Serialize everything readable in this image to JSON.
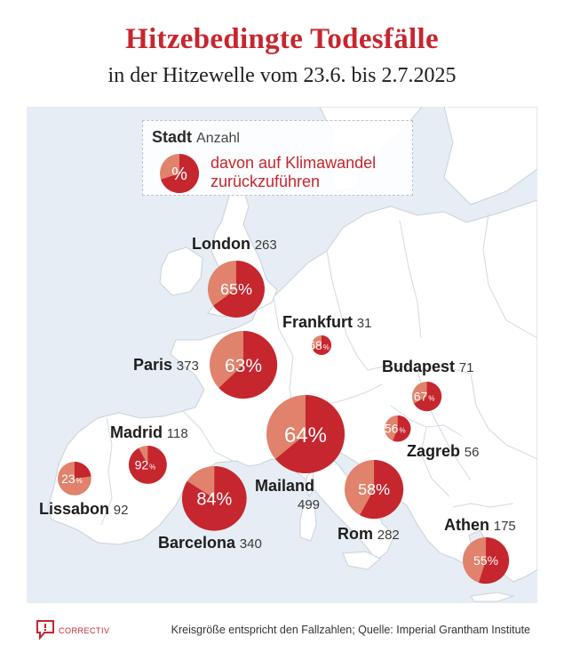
{
  "title": "Hitzebedingte Todesfälle",
  "subtitle": "in der Hitzewelle vom 23.6. bis 2.7.2025",
  "legend": {
    "city_label": "Stadt",
    "count_label": "Anzahl",
    "pie_symbol": "%",
    "description_line1": "davon auf Klimawandel",
    "description_line2": "zurückzuführen"
  },
  "colors": {
    "sea": "#e6edf4",
    "land": "#ffffff",
    "border": "#c9d2db",
    "accent_dark": "#c6262e",
    "accent_light": "#e0826c",
    "text": "#1d1d1d"
  },
  "map_data": {
    "metric": "Hitzebedingte Todesfälle",
    "share_metric": "davon auf Klimawandel zurückzuführen (%)",
    "size_encoding": "Kreisgröße entspricht den Fallzahlen",
    "cities": [
      {
        "name": "London",
        "count": 263,
        "count_label": "263",
        "share": 65,
        "share_label": "65",
        "pct_sign": "%"
      },
      {
        "name": "Frankfurt",
        "count": 31,
        "count_label": "31",
        "share": 68,
        "share_label": "68",
        "pct_sign": "%"
      },
      {
        "name": "Paris",
        "count": 373,
        "count_label": "373",
        "share": 63,
        "share_label": "63",
        "pct_sign": "%"
      },
      {
        "name": "Budapest",
        "count": 71,
        "count_label": "71",
        "share": 67,
        "share_label": "67",
        "pct_sign": "%"
      },
      {
        "name": "Madrid",
        "count": 118,
        "count_label": "118",
        "share": 92,
        "share_label": "92",
        "pct_sign": "%"
      },
      {
        "name": "Mailand",
        "count": 499,
        "count_label": "499",
        "share": 64,
        "share_label": "64",
        "pct_sign": "%"
      },
      {
        "name": "Zagreb",
        "count": 56,
        "count_label": "56",
        "share": 56,
        "share_label": "56",
        "pct_sign": "%"
      },
      {
        "name": "Lissabon",
        "count": 92,
        "count_label": "92",
        "share": 23,
        "share_label": "23",
        "pct_sign": "%"
      },
      {
        "name": "Barcelona",
        "count": 340,
        "count_label": "340",
        "share": 84,
        "share_label": "84",
        "pct_sign": "%"
      },
      {
        "name": "Rom",
        "count": 282,
        "count_label": "282",
        "share": 58,
        "share_label": "58",
        "pct_sign": "%"
      },
      {
        "name": "Athen",
        "count": 175,
        "count_label": "175",
        "share": 55,
        "share_label": "55",
        "pct_sign": "%"
      }
    ]
  },
  "footer": {
    "brand": "CORRECTIV",
    "note": "Kreisgröße entspricht den Fallzahlen; Quelle: Imperial Grantham Institute"
  }
}
